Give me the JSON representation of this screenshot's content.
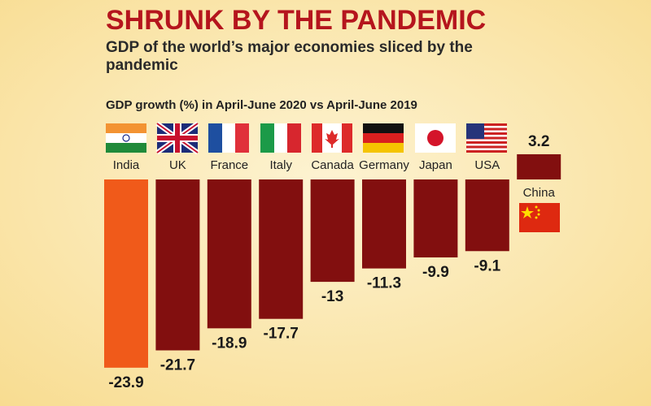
{
  "chart_data": {
    "type": "bar",
    "title": "SHRUNK BY THE PANDEMIC",
    "subtitle": [
      "GDP of the world’s major economies sliced by the",
      "pandemic"
    ],
    "y_label": "GDP growth (%) in April-June 2020 vs April-June 2019",
    "categories": [
      "India",
      "UK",
      "France",
      "Italy",
      "Canada",
      "Germany",
      "Japan",
      "USA",
      "China"
    ],
    "values": [
      -23.9,
      -21.7,
      -18.9,
      -17.7,
      -13,
      -11.3,
      -9.9,
      -9.1,
      3.2
    ],
    "colors": [
      "#f05a1a",
      "#820f0f",
      "#820f0f",
      "#820f0f",
      "#820f0f",
      "#820f0f",
      "#820f0f",
      "#820f0f",
      "#820f0f"
    ]
  }
}
